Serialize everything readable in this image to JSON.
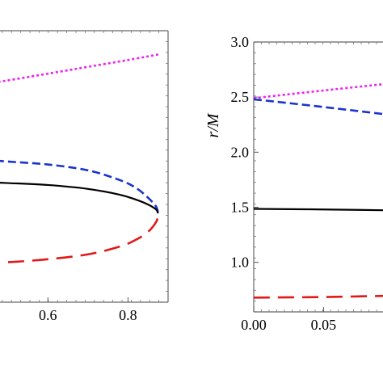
{
  "chart_data": [
    {
      "type": "line",
      "xlabel": "",
      "ylabel": "",
      "xlim": [
        0.44,
        0.9
      ],
      "ylim": [
        0.42,
        3.2
      ],
      "xticks": [
        0.6,
        0.8
      ],
      "xtick_labels": [
        "0.6",
        "0.8"
      ],
      "yticks": [],
      "ytick_labels": [],
      "series": [
        {
          "color": "#ee22ee",
          "style": "dotted",
          "x": [
            0.44,
            0.6,
            0.7,
            0.8,
            0.88
          ],
          "y": [
            2.65,
            2.76,
            2.83,
            2.9,
            2.96
          ]
        },
        {
          "color": "#1a33cc",
          "style": "dashed",
          "x": [
            0.44,
            0.5,
            0.6,
            0.7,
            0.78,
            0.82,
            0.85,
            0.87,
            0.875
          ],
          "y": [
            1.88,
            1.86,
            1.83,
            1.77,
            1.67,
            1.59,
            1.49,
            1.4,
            1.33
          ]
        },
        {
          "color": "#000000",
          "style": "solid",
          "x": [
            0.44,
            0.5,
            0.6,
            0.7,
            0.78,
            0.82,
            0.85,
            0.87,
            0.875
          ],
          "y": [
            1.65,
            1.64,
            1.62,
            1.58,
            1.52,
            1.47,
            1.42,
            1.37,
            1.33
          ]
        },
        {
          "color": "#e01818",
          "style": "longdash",
          "x": [
            0.44,
            0.5,
            0.6,
            0.7,
            0.78,
            0.82,
            0.85,
            0.87,
            0.875
          ],
          "y": [
            0.83,
            0.83,
            0.86,
            0.91,
            0.99,
            1.06,
            1.14,
            1.24,
            1.31
          ]
        }
      ]
    },
    {
      "type": "line",
      "xlabel": "",
      "ylabel": "r/M",
      "xlim": [
        0.0,
        0.11
      ],
      "ylim": [
        0.55,
        3.0
      ],
      "xticks": [
        0.0,
        0.05
      ],
      "xtick_labels": [
        "0.00",
        "0.05"
      ],
      "yticks": [
        1.0,
        1.5,
        2.0,
        2.5,
        3.0
      ],
      "ytick_labels": [
        "1.0",
        "1.5",
        "2.0",
        "2.5",
        "3.0"
      ],
      "series": [
        {
          "color": "#ee22ee",
          "style": "dotted",
          "x": [
            0.0,
            0.05,
            0.11
          ],
          "y": [
            2.49,
            2.56,
            2.64
          ]
        },
        {
          "color": "#1a33cc",
          "style": "dashed",
          "x": [
            0.0,
            0.05,
            0.11
          ],
          "y": [
            2.48,
            2.41,
            2.32
          ]
        },
        {
          "color": "#000000",
          "style": "solid",
          "x": [
            0.0,
            0.05,
            0.11
          ],
          "y": [
            1.485,
            1.48,
            1.47
          ]
        },
        {
          "color": "#e01818",
          "style": "longdash",
          "x": [
            0.0,
            0.05,
            0.11
          ],
          "y": [
            0.68,
            0.685,
            0.7
          ]
        }
      ]
    }
  ]
}
